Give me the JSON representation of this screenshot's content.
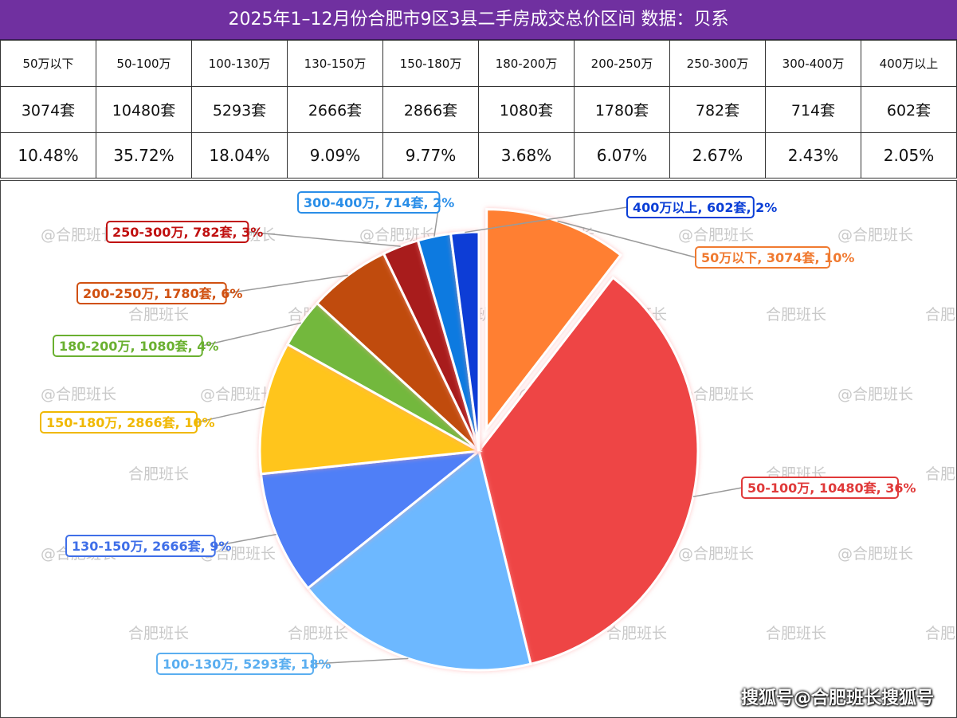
{
  "title": "2025年1–12月份合肥市9区3县二手房成交总价区间 数据：贝系",
  "watermark": "@合肥班长",
  "watermark_alt": "合肥班长",
  "credit": "搜狐号@合肥班长搜狐号",
  "table": {
    "ranges": [
      "50万以下",
      "50-100万",
      "100-130万",
      "130-150万",
      "150-180万",
      "180-200万",
      "200-250万",
      "250-300万",
      "300-400万",
      "400万以上"
    ],
    "counts": [
      "3074套",
      "10480套",
      "5293套",
      "2666套",
      "2866套",
      "1080套",
      "1780套",
      "782套",
      "714套",
      "602套"
    ],
    "percents": [
      "10.48%",
      "35.72%",
      "18.04%",
      "9.09%",
      "9.77%",
      "3.68%",
      "6.07%",
      "2.67%",
      "2.43%",
      "2.05%"
    ]
  },
  "chart_data": {
    "type": "pie",
    "categories": [
      "50万以下",
      "50-100万",
      "100-130万",
      "130-150万",
      "150-180万",
      "180-200万",
      "200-250万",
      "250-300万",
      "300-400万",
      "400万以上"
    ],
    "values": [
      3074,
      10480,
      5293,
      2666,
      2866,
      1080,
      1780,
      782,
      714,
      602
    ],
    "labels": [
      "50万以下, 3074套, 10%",
      "50-100万, 10480套, 36%",
      "100-130万, 5293套, 18%",
      "130-150万, 2666套, 9%",
      "150-180万, 2866套, 10%",
      "180-200万, 1080套, 4%",
      "200-250万, 1780套, 6%",
      "250-300万, 782套, 3%",
      "300-400万, 714套, 2%",
      "400万以上, 602套, 2%"
    ],
    "colors": [
      "#ff7f32",
      "#ee4444",
      "#6db8ff",
      "#4f7ff7",
      "#ffc51c",
      "#73b83c",
      "#c04b0c",
      "#a81a1a",
      "#0f7ae0",
      "#0a3ed6"
    ],
    "label_colors": [
      "#f07a30",
      "#e03a3a",
      "#5aaef0",
      "#3f6fe8",
      "#f0b800",
      "#6ab030",
      "#d05010",
      "#c01010",
      "#2a8ee8",
      "#0a3ed6"
    ],
    "exploded": "50万以下",
    "legend": "none"
  }
}
